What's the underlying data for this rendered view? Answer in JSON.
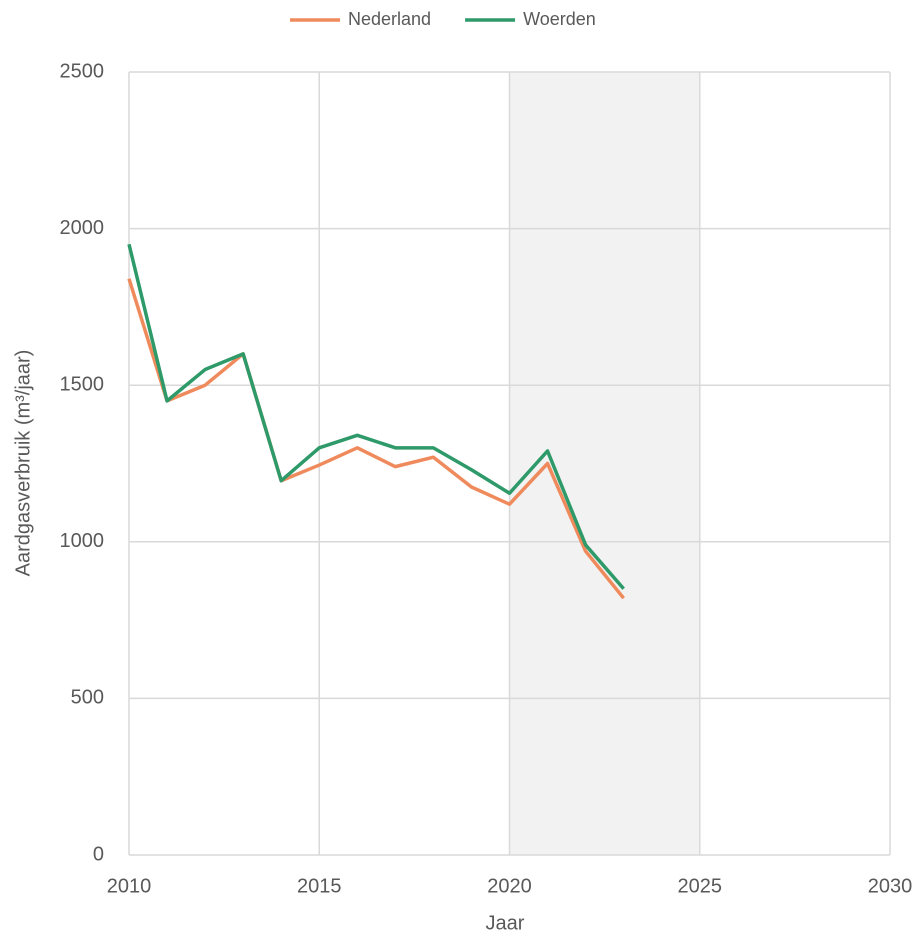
{
  "chart_data": {
    "type": "line",
    "x": [
      2010,
      2011,
      2012,
      2013,
      2014,
      2015,
      2016,
      2017,
      2018,
      2019,
      2020,
      2021,
      2022,
      2023
    ],
    "series": [
      {
        "name": "Nederland",
        "color": "#ef8a5c",
        "values": [
          1840,
          1450,
          1500,
          1600,
          1195,
          1245,
          1300,
          1240,
          1270,
          1175,
          1120,
          1250,
          970,
          820
        ]
      },
      {
        "name": "Woerden",
        "color": "#2e9a6a",
        "values": [
          1950,
          1450,
          1550,
          1600,
          1195,
          1300,
          1340,
          1300,
          1300,
          1230,
          1155,
          1290,
          990,
          850
        ]
      }
    ],
    "xlabel": "Jaar",
    "ylabel": "Aardgasverbruik (m³/jaar)",
    "xlim": [
      2010,
      2030
    ],
    "xticks": [
      2010,
      2015,
      2020,
      2025,
      2030
    ],
    "ylim": [
      0,
      2500
    ],
    "yticks": [
      0,
      500,
      1000,
      1500,
      2000,
      2500
    ],
    "highlight_x": [
      2020,
      2025
    ],
    "highlight_color": "#f2f2f2",
    "grid": true,
    "legend": "top"
  }
}
